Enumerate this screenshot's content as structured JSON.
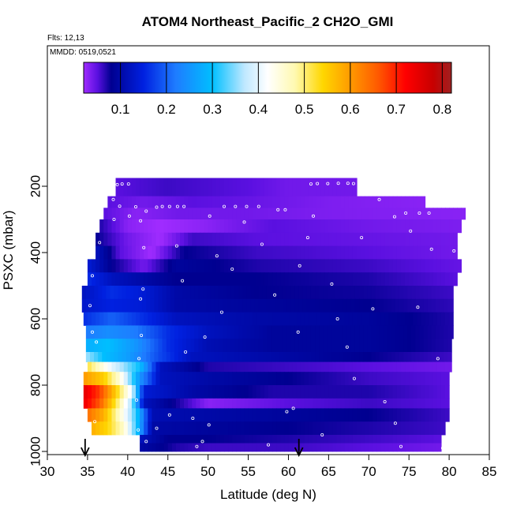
{
  "chart_data": {
    "type": "heatmap",
    "title": "ATOM4 Northeast_Pacific_2 CH2O_GMI",
    "flights_label": "Flts: 12,13",
    "date_label": "MMDD: 0519,0521",
    "xlabel": "Latitude (deg N)",
    "ylabel": "PSXC (mbar)",
    "xlim": [
      30,
      85
    ],
    "ylim": [
      1000,
      0
    ],
    "x_ticks": [
      30,
      35,
      40,
      45,
      50,
      55,
      60,
      65,
      70,
      75,
      80,
      85
    ],
    "y_ticks": [
      200,
      400,
      600,
      800,
      1000
    ],
    "colorbar": {
      "range": [
        0.02,
        0.82
      ],
      "ticks": [
        0.1,
        0.2,
        0.3,
        0.4,
        0.5,
        0.6,
        0.7,
        0.8
      ],
      "stops": [
        {
          "v": 0.02,
          "c": "#a02cff"
        },
        {
          "v": 0.05,
          "c": "#5a10e0"
        },
        {
          "v": 0.08,
          "c": "#000090"
        },
        {
          "v": 0.15,
          "c": "#0020e0"
        },
        {
          "v": 0.22,
          "c": "#1e7cff"
        },
        {
          "v": 0.3,
          "c": "#00bfff"
        },
        {
          "v": 0.37,
          "c": "#bfe8ff"
        },
        {
          "v": 0.42,
          "c": "#ffffff"
        },
        {
          "v": 0.48,
          "c": "#fff9b0"
        },
        {
          "v": 0.54,
          "c": "#ffd700"
        },
        {
          "v": 0.6,
          "c": "#ff9a00"
        },
        {
          "v": 0.66,
          "c": "#ff5a00"
        },
        {
          "v": 0.72,
          "c": "#ff0000"
        },
        {
          "v": 0.78,
          "c": "#c80000"
        },
        {
          "v": 0.82,
          "c": "#a02020"
        }
      ]
    },
    "arrows_latitude": [
      34.7,
      61.3
    ],
    "grid": false,
    "legend": "top",
    "series": [
      {
        "p_range": [
          175,
          230
        ],
        "lat_range": [
          38.5,
          68.5
        ],
        "values": [
          [
            38.5,
            0.05
          ],
          [
            45,
            0.06
          ],
          [
            50,
            0.055
          ],
          [
            55,
            0.05
          ],
          [
            60,
            0.04
          ],
          [
            68.5,
            0.04
          ]
        ]
      },
      {
        "p_range": [
          230,
          265
        ],
        "lat_range": [
          37.5,
          77
        ],
        "values": [
          [
            37.5,
            0.05
          ],
          [
            42,
            0.04
          ],
          [
            48,
            0.05
          ],
          [
            55,
            0.045
          ],
          [
            65,
            0.035
          ],
          [
            77,
            0.03
          ]
        ]
      },
      {
        "p_range": [
          265,
          300
        ],
        "lat_range": [
          37,
          82
        ],
        "values": [
          [
            37,
            0.05
          ],
          [
            41,
            0.03
          ],
          [
            46,
            0.04
          ],
          [
            55,
            0.04
          ],
          [
            65,
            0.035
          ],
          [
            82,
            0.03
          ]
        ]
      },
      {
        "p_range": [
          300,
          340
        ],
        "lat_range": [
          36.5,
          81.5
        ],
        "values": [
          [
            36.5,
            0.07
          ],
          [
            40,
            0.03
          ],
          [
            44,
            0.02
          ],
          [
            50,
            0.03
          ],
          [
            58,
            0.05
          ],
          [
            70,
            0.04
          ],
          [
            81.5,
            0.035
          ]
        ]
      },
      {
        "p_range": [
          340,
          380
        ],
        "lat_range": [
          36,
          81
        ],
        "values": [
          [
            36,
            0.08
          ],
          [
            40,
            0.04
          ],
          [
            44,
            0.02
          ],
          [
            48,
            0.06
          ],
          [
            56,
            0.05
          ],
          [
            70,
            0.045
          ],
          [
            81,
            0.04
          ]
        ]
      },
      {
        "p_range": [
          380,
          420
        ],
        "lat_range": [
          36,
          81
        ],
        "values": [
          [
            36,
            0.12
          ],
          [
            39,
            0.05
          ],
          [
            43,
            0.02
          ],
          [
            47,
            0.08
          ],
          [
            56,
            0.06
          ],
          [
            70,
            0.05
          ],
          [
            81,
            0.04
          ]
        ]
      },
      {
        "p_range": [
          420,
          460
        ],
        "lat_range": [
          35,
          81.5
        ],
        "values": [
          [
            35,
            0.14
          ],
          [
            38,
            0.08
          ],
          [
            42,
            0.04
          ],
          [
            46,
            0.09
          ],
          [
            56,
            0.07
          ],
          [
            70,
            0.06
          ],
          [
            81.5,
            0.045
          ]
        ]
      },
      {
        "p_range": [
          460,
          500
        ],
        "lat_range": [
          35,
          81
        ],
        "values": [
          [
            35,
            0.16
          ],
          [
            38,
            0.12
          ],
          [
            42,
            0.1
          ],
          [
            46,
            0.08
          ],
          [
            56,
            0.08
          ],
          [
            70,
            0.07
          ],
          [
            81,
            0.05
          ]
        ]
      },
      {
        "p_range": [
          500,
          540
        ],
        "lat_range": [
          34.3,
          80.5
        ],
        "values": [
          [
            34.3,
            0.12
          ],
          [
            38,
            0.16
          ],
          [
            42,
            0.14
          ],
          [
            46,
            0.1
          ],
          [
            56,
            0.08
          ],
          [
            70,
            0.075
          ],
          [
            80.5,
            0.06
          ]
        ]
      },
      {
        "p_range": [
          540,
          580
        ],
        "lat_range": [
          34.3,
          80.5
        ],
        "values": [
          [
            34.3,
            0.13
          ],
          [
            38,
            0.15
          ],
          [
            42,
            0.14
          ],
          [
            46,
            0.1
          ],
          [
            56,
            0.09
          ],
          [
            70,
            0.08
          ],
          [
            80.5,
            0.065
          ]
        ]
      },
      {
        "p_range": [
          580,
          620
        ],
        "lat_range": [
          34.5,
          80.5
        ],
        "values": [
          [
            34.5,
            0.16
          ],
          [
            38,
            0.2
          ],
          [
            42,
            0.16
          ],
          [
            46,
            0.12
          ],
          [
            56,
            0.1
          ],
          [
            70,
            0.09
          ],
          [
            80.5,
            0.07
          ]
        ]
      },
      {
        "p_range": [
          620,
          660
        ],
        "lat_range": [
          34.8,
          80.5
        ],
        "values": [
          [
            34.8,
            0.22
          ],
          [
            37.5,
            0.24
          ],
          [
            41,
            0.22
          ],
          [
            45,
            0.16
          ],
          [
            50,
            0.12
          ],
          [
            58,
            0.09
          ],
          [
            70,
            0.09
          ],
          [
            80.5,
            0.07
          ]
        ]
      },
      {
        "p_range": [
          660,
          700
        ],
        "lat_range": [
          34.8,
          80.3
        ],
        "values": [
          [
            34.8,
            0.28
          ],
          [
            37.5,
            0.3
          ],
          [
            41,
            0.25
          ],
          [
            45,
            0.16
          ],
          [
            50,
            0.11
          ],
          [
            58,
            0.09
          ],
          [
            70,
            0.09
          ],
          [
            80.3,
            0.07
          ]
        ]
      },
      {
        "p_range": [
          700,
          730
        ],
        "lat_range": [
          34.8,
          80.3
        ],
        "values": [
          [
            34.8,
            0.36
          ],
          [
            37,
            0.3
          ],
          [
            40,
            0.26
          ],
          [
            44,
            0.18
          ],
          [
            48,
            0.12
          ],
          [
            58,
            0.1
          ],
          [
            70,
            0.08
          ],
          [
            80.3,
            0.06
          ]
        ]
      },
      {
        "p_range": [
          730,
          760
        ],
        "lat_range": [
          35,
          80.3
        ],
        "values": [
          [
            35,
            0.52
          ],
          [
            38,
            0.4
          ],
          [
            41.5,
            0.3
          ],
          [
            44,
            0.12
          ],
          [
            50,
            0.07
          ],
          [
            60,
            0.06
          ],
          [
            70,
            0.05
          ],
          [
            80.3,
            0.04
          ]
        ]
      },
      {
        "p_range": [
          760,
          800
        ],
        "lat_range": [
          34.5,
          80
        ],
        "values": [
          [
            34.5,
            0.6
          ],
          [
            37,
            0.55
          ],
          [
            39,
            0.45
          ],
          [
            41.5,
            0.25
          ],
          [
            44,
            0.12
          ],
          [
            50,
            0.1
          ],
          [
            60,
            0.08
          ],
          [
            70,
            0.06
          ],
          [
            80,
            0.05
          ]
        ]
      },
      {
        "p_range": [
          800,
          840
        ],
        "lat_range": [
          34.5,
          80
        ],
        "values": [
          [
            34.5,
            0.75
          ],
          [
            36.5,
            0.68
          ],
          [
            38.5,
            0.55
          ],
          [
            40.5,
            0.4
          ],
          [
            42,
            0.14
          ],
          [
            48,
            0.1
          ],
          [
            58,
            0.07
          ],
          [
            70,
            0.07
          ],
          [
            80,
            0.05
          ]
        ]
      },
      {
        "p_range": [
          840,
          870
        ],
        "lat_range": [
          34.5,
          80
        ],
        "values": [
          [
            34.5,
            0.74
          ],
          [
            36.5,
            0.66
          ],
          [
            38.5,
            0.52
          ],
          [
            40.5,
            0.36
          ],
          [
            42,
            0.12
          ],
          [
            50,
            0.03
          ],
          [
            60,
            0.05
          ],
          [
            70,
            0.06
          ],
          [
            80,
            0.05
          ]
        ]
      },
      {
        "p_range": [
          870,
          910
        ],
        "lat_range": [
          35,
          80
        ],
        "values": [
          [
            35,
            0.64
          ],
          [
            37,
            0.58
          ],
          [
            39,
            0.46
          ],
          [
            41,
            0.32
          ],
          [
            43,
            0.11
          ],
          [
            50,
            0.1
          ],
          [
            60,
            0.09
          ],
          [
            70,
            0.08
          ],
          [
            80,
            0.06
          ]
        ]
      },
      {
        "p_range": [
          910,
          950
        ],
        "lat_range": [
          35.5,
          79.5
        ],
        "values": [
          [
            35.5,
            0.58
          ],
          [
            37.5,
            0.54
          ],
          [
            39.5,
            0.46
          ],
          [
            41,
            0.32
          ],
          [
            43,
            0.1
          ],
          [
            50,
            0.09
          ],
          [
            60,
            0.08
          ],
          [
            70,
            0.07
          ],
          [
            79.5,
            0.06
          ]
        ]
      },
      {
        "p_range": [
          950,
          975
        ],
        "lat_range": [
          41.5,
          79
        ],
        "values": [
          [
            41.5,
            0.12
          ],
          [
            45,
            0.08
          ],
          [
            50,
            0.08
          ],
          [
            60,
            0.07
          ],
          [
            70,
            0.06
          ],
          [
            79,
            0.05
          ]
        ]
      },
      {
        "p_range": [
          975,
          1000
        ],
        "lat_range": [
          41.5,
          79
        ],
        "values": [
          [
            41.5,
            0.1
          ],
          [
            46,
            0.07
          ],
          [
            50,
            0.06
          ],
          [
            60,
            0.06
          ],
          [
            70,
            0.05
          ],
          [
            79,
            0.04
          ]
        ]
      }
    ],
    "points": [
      [
        38.7,
        195
      ],
      [
        39.3,
        193
      ],
      [
        40.1,
        193
      ],
      [
        43.6,
        263
      ],
      [
        44.3,
        261
      ],
      [
        45.2,
        261
      ],
      [
        46.2,
        261
      ],
      [
        47.0,
        261
      ],
      [
        52.0,
        261
      ],
      [
        53.4,
        261
      ],
      [
        54.8,
        261
      ],
      [
        56.3,
        261
      ],
      [
        58.7,
        271
      ],
      [
        59.6,
        271
      ],
      [
        62.8,
        193
      ],
      [
        63.6,
        192
      ],
      [
        64.9,
        192
      ],
      [
        66.2,
        191
      ],
      [
        67.4,
        191
      ],
      [
        68.1,
        192
      ],
      [
        69.2,
        212
      ],
      [
        70.1,
        215
      ],
      [
        71.3,
        240
      ],
      [
        73.2,
        292
      ],
      [
        74.6,
        281
      ],
      [
        76.3,
        281
      ],
      [
        77.5,
        281
      ],
      [
        37.8,
        216
      ],
      [
        38.2,
        240
      ],
      [
        38.3,
        300
      ],
      [
        39.0,
        260
      ],
      [
        40.2,
        290
      ],
      [
        41.0,
        262
      ],
      [
        41.6,
        304
      ],
      [
        42.3,
        275
      ],
      [
        42.0,
        385
      ],
      [
        41.9,
        510
      ],
      [
        41.6,
        540
      ],
      [
        41.7,
        650
      ],
      [
        41.4,
        720
      ],
      [
        41.1,
        845
      ],
      [
        41.3,
        935
      ],
      [
        42.3,
        970
      ],
      [
        43.6,
        930
      ],
      [
        45.2,
        890
      ],
      [
        46.1,
        380
      ],
      [
        46.8,
        485
      ],
      [
        47.2,
        700
      ],
      [
        48.1,
        900
      ],
      [
        48.6,
        985
      ],
      [
        49.3,
        970
      ],
      [
        50.1,
        920
      ],
      [
        49.6,
        655
      ],
      [
        50.2,
        290
      ],
      [
        51.1,
        410
      ],
      [
        51.7,
        580
      ],
      [
        53.0,
        450
      ],
      [
        54.5,
        308
      ],
      [
        56.7,
        375
      ],
      [
        57.5,
        980
      ],
      [
        58.3,
        528
      ],
      [
        59.8,
        880
      ],
      [
        61.2,
        640
      ],
      [
        60.6,
        870
      ],
      [
        61.4,
        440
      ],
      [
        62.4,
        355
      ],
      [
        63.1,
        290
      ],
      [
        64.2,
        950
      ],
      [
        65.4,
        495
      ],
      [
        66.1,
        600
      ],
      [
        67.3,
        685
      ],
      [
        68.2,
        780
      ],
      [
        69.1,
        355
      ],
      [
        70.5,
        570
      ],
      [
        72.0,
        850
      ],
      [
        73.3,
        915
      ],
      [
        74.0,
        985
      ],
      [
        75.2,
        335
      ],
      [
        76.1,
        565
      ],
      [
        77.8,
        390
      ],
      [
        78.6,
        720
      ],
      [
        79.2,
        990
      ],
      [
        80.6,
        395
      ],
      [
        36.5,
        370
      ],
      [
        35.6,
        470
      ],
      [
        35.3,
        560
      ],
      [
        35.6,
        640
      ],
      [
        36.1,
        670
      ],
      [
        35.9,
        910
      ],
      [
        36.4,
        960
      ],
      [
        37.2,
        958
      ]
    ]
  }
}
